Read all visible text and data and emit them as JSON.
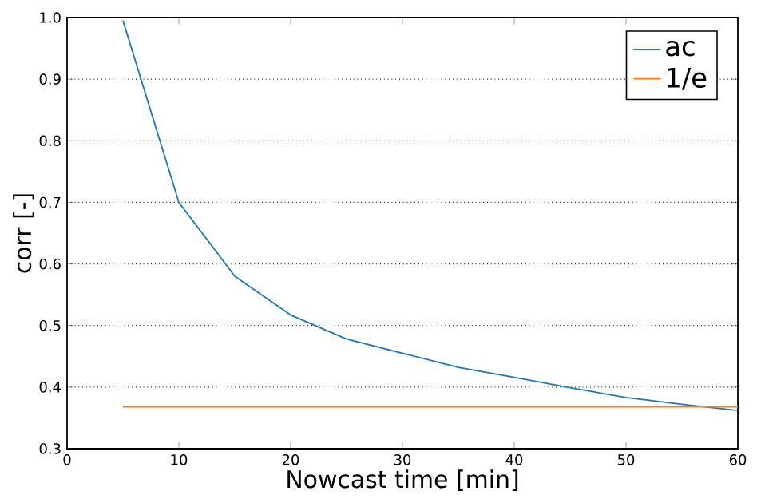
{
  "chart_data": {
    "type": "line",
    "xlabel": "Nowcast time [min]",
    "ylabel": "corr [-]",
    "xlim": [
      0,
      60
    ],
    "xticks": [
      0,
      10,
      20,
      30,
      40,
      50,
      60
    ],
    "ylim": [
      0.3,
      1.0
    ],
    "yticks": [
      0.3,
      0.4,
      0.5,
      0.6,
      0.7,
      0.8,
      0.9,
      {
        "value": 1.0,
        "label": "1.0"
      }
    ],
    "grid": "y",
    "legend": "top right",
    "marker": "none",
    "line_style": "solid",
    "series": [
      {
        "name": "ac",
        "color": "#1f77b4",
        "x": [
          5,
          10,
          15,
          20,
          25,
          30,
          35,
          40,
          45,
          50,
          55,
          60
        ],
        "values": [
          0.995,
          0.7,
          0.58,
          0.517,
          0.478,
          0.455,
          0.432,
          0.416,
          0.399,
          0.383,
          0.372,
          0.362
        ]
      },
      {
        "name": "1/e",
        "color": "#ff7f0e",
        "x": [
          5,
          60
        ],
        "values": [
          0.368,
          0.368
        ]
      }
    ]
  }
}
